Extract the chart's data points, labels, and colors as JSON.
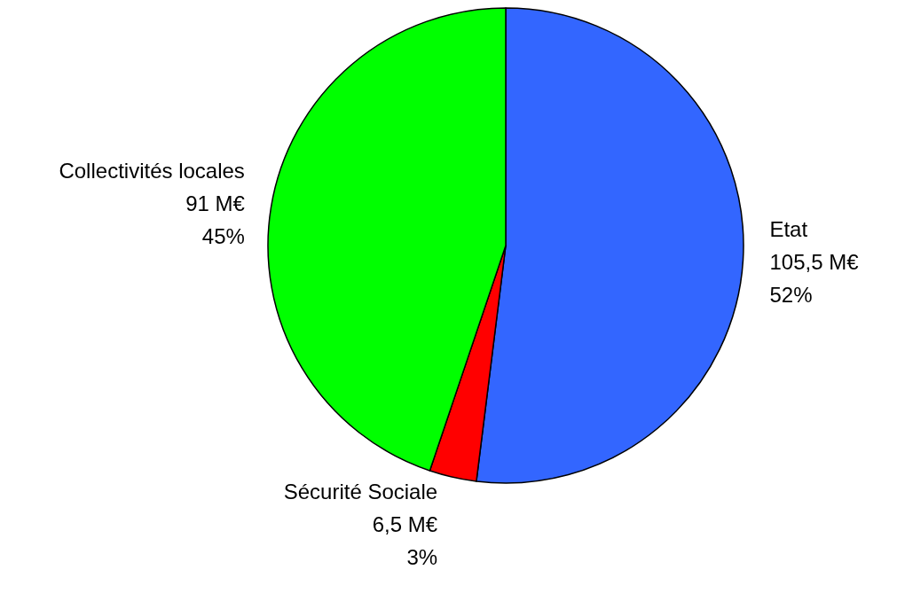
{
  "chart_data": {
    "type": "pie",
    "categories": [
      "Etat",
      "Sécurité Sociale",
      "Collectivités locales"
    ],
    "values": [
      105.5,
      6.5,
      91
    ],
    "colors": [
      "#3366ff",
      "#ff0000",
      "#00ff00"
    ],
    "value_labels": [
      "105,5 M€\n52%",
      "6,5 M€\n3%",
      "91 M€\n45%"
    ]
  }
}
